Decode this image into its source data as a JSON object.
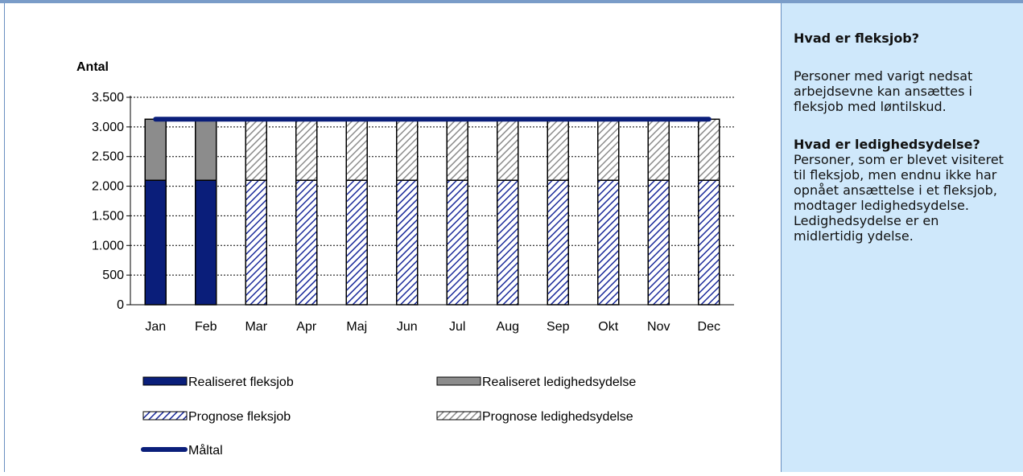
{
  "chart_data": {
    "type": "bar",
    "stacked": true,
    "ylabel": "Antal",
    "ylim": [
      0,
      3500
    ],
    "yticks": [
      0,
      500,
      1000,
      1500,
      2000,
      2500,
      3000,
      3500
    ],
    "ytick_labels": [
      "0",
      "500",
      "1.000",
      "1.500",
      "2.000",
      "2.500",
      "3.000",
      "3.500"
    ],
    "grid": true,
    "categories": [
      "Jan",
      "Feb",
      "Mar",
      "Apr",
      "Maj",
      "Jun",
      "Jul",
      "Aug",
      "Sep",
      "Okt",
      "Nov",
      "Dec"
    ],
    "series": [
      {
        "name": "Realiseret fleksjob",
        "kind": "bar",
        "style": "solid",
        "color": "#0a1e7a",
        "values": [
          2100,
          2100,
          null,
          null,
          null,
          null,
          null,
          null,
          null,
          null,
          null,
          null
        ]
      },
      {
        "name": "Realiseret ledighedsydelse",
        "kind": "bar",
        "style": "solid",
        "color": "#8c8c8c",
        "values": [
          1030,
          1030,
          null,
          null,
          null,
          null,
          null,
          null,
          null,
          null,
          null,
          null
        ]
      },
      {
        "name": "Prognose fleksjob",
        "kind": "bar",
        "style": "hatched",
        "color": "#1a2a9a",
        "values": [
          null,
          null,
          2100,
          2100,
          2100,
          2100,
          2100,
          2100,
          2100,
          2100,
          2100,
          2100
        ]
      },
      {
        "name": "Prognose ledighedsydelse",
        "kind": "bar",
        "style": "hatched",
        "color": "#8c8c8c",
        "values": [
          null,
          null,
          1030,
          1030,
          1030,
          1030,
          1030,
          1030,
          1030,
          1030,
          1030,
          1030
        ]
      },
      {
        "name": "Måltal",
        "kind": "line",
        "color": "#0a1e7a",
        "values": [
          3130,
          3130,
          3130,
          3130,
          3130,
          3130,
          3130,
          3130,
          3130,
          3130,
          3130,
          3130
        ]
      }
    ],
    "legend": [
      {
        "label": "Realiseret fleksjob",
        "swatch": "solid-navy"
      },
      {
        "label": "Realiseret ledighedsydelse",
        "swatch": "solid-gray"
      },
      {
        "label": "Prognose fleksjob",
        "swatch": "hatch-navy"
      },
      {
        "label": "Prognose ledighedsydelse",
        "swatch": "hatch-gray"
      },
      {
        "label": "Måltal",
        "swatch": "line-navy"
      }
    ],
    "legend_position": "bottom"
  },
  "info": {
    "heading1": "Hvad er fleksjob?",
    "text1": "Personer med varigt nedsat arbejdsevne kan ansættes i fleksjob med løntilskud.",
    "heading2": "Hvad er ledighedsydelse?",
    "text2": "Personer, som er blevet visiteret til fleksjob, men endnu ikke har opnået ansættelse i et fleksjob, modtager ledighedsydelse. Ledighedsydelse er en midlertidig ydelse."
  },
  "colors": {
    "navy": "#0a1e7a",
    "gray": "#8c8c8c",
    "panel_bg": "#cfe8fb",
    "frame": "#6a8fc0"
  }
}
